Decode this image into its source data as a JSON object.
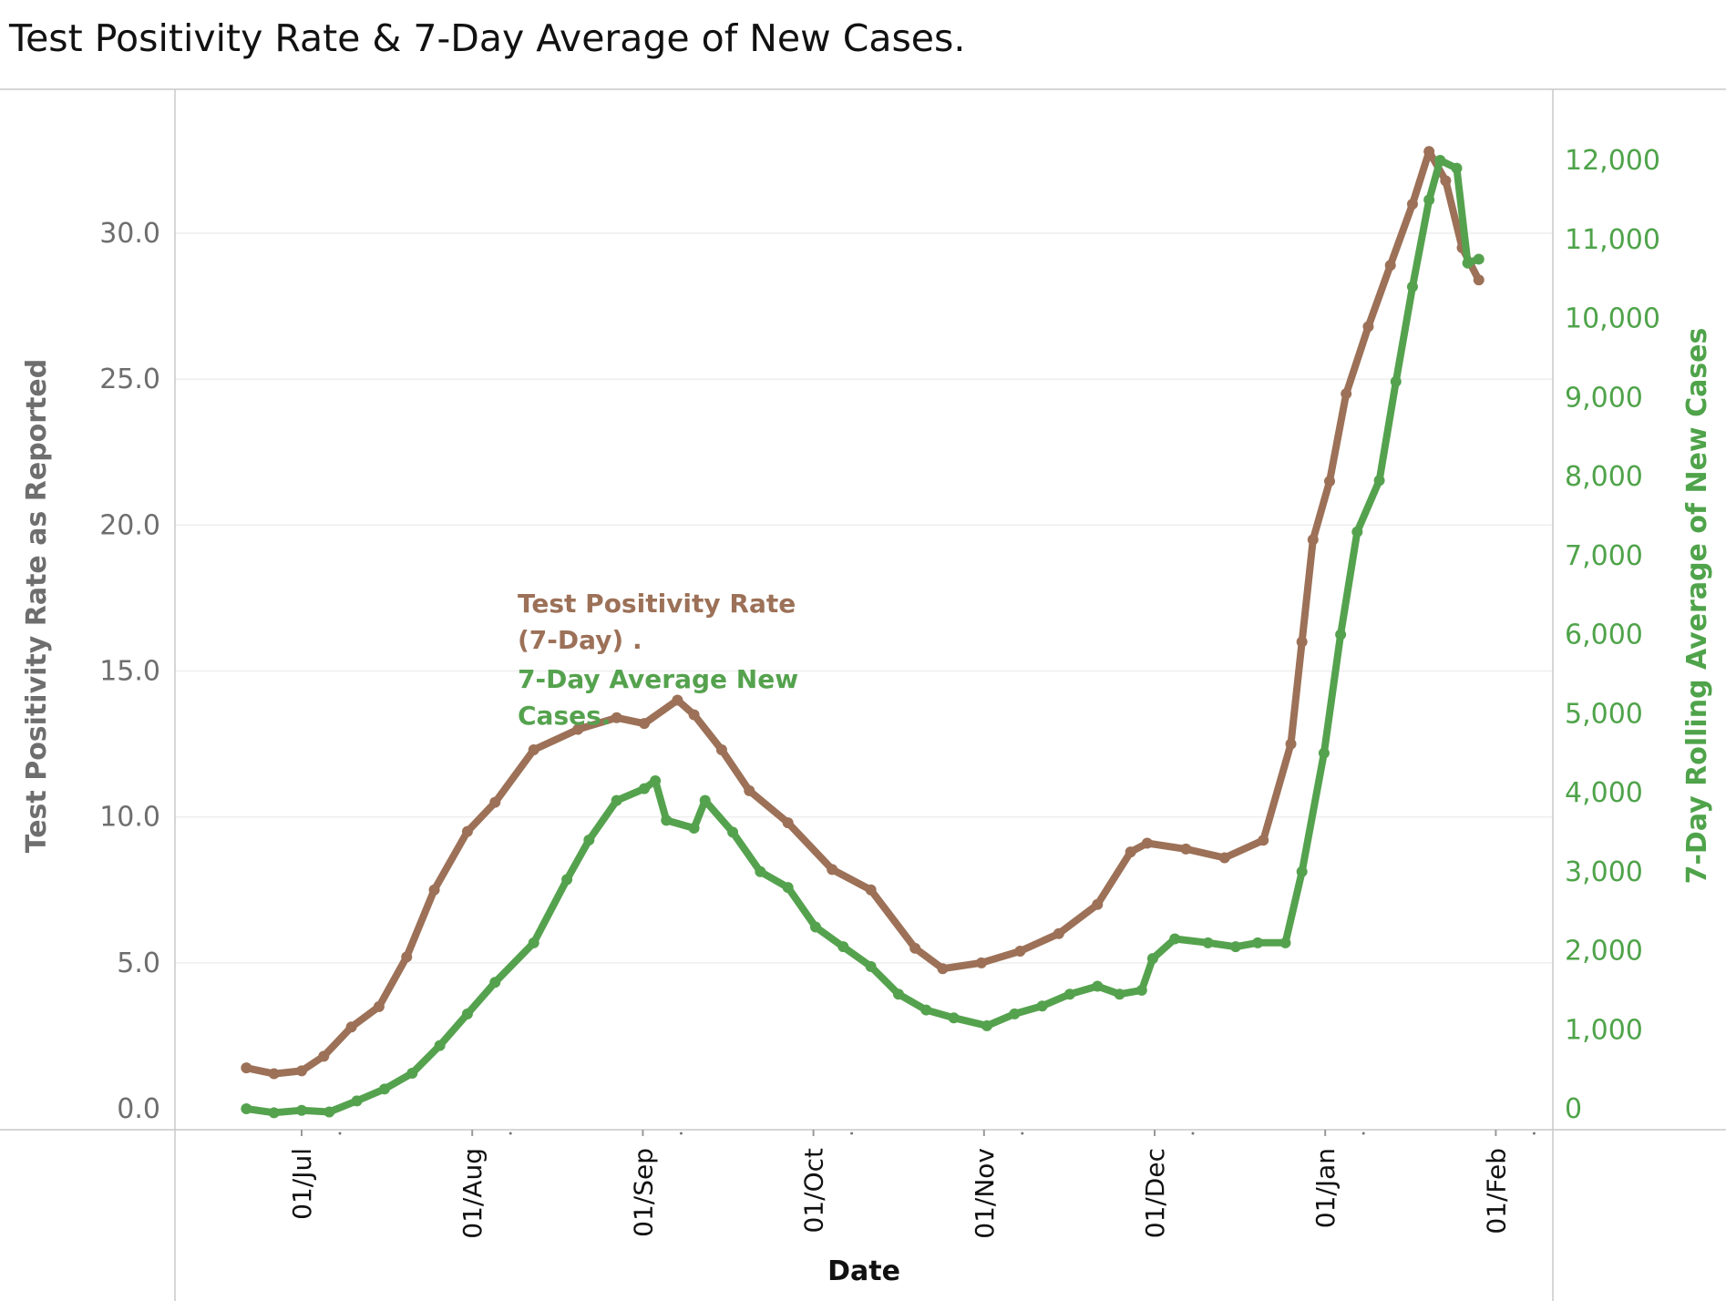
{
  "title": "Test Positivity Rate & 7-Day Average of New Cases.",
  "colors": {
    "positivity": "#9c7158",
    "cases": "#55a24e",
    "left_axis_text": "#6e6e6e",
    "right_axis_text": "#4fa34a",
    "grid": "#eeeeee",
    "axis": "#c8c8c8"
  },
  "legend": {
    "positivity_line1": "Test Positivity Rate",
    "positivity_line2": "(7-Day) .",
    "cases_line1": "7-Day Average New",
    "cases_line2": "Cases."
  },
  "chart_data": {
    "type": "line",
    "title": "Test Positivity Rate & 7-Day Average of New Cases.",
    "xlabel": "Date",
    "ylabel": "Test Positivity Rate as Reported",
    "y2label": "7-Day Rolling Average of New Cases",
    "x_ticks": [
      "01/Jul",
      "01/Aug",
      "01/Sep",
      "01/Oct",
      "01/Nov",
      "01/Dec",
      "01/Jan",
      "01/Feb"
    ],
    "y_ticks": [
      "0.0",
      "5.0",
      "10.0",
      "15.0",
      "20.0",
      "25.0",
      "30.0"
    ],
    "y2_ticks": [
      "0",
      "1,000",
      "2,000",
      "3,000",
      "4,000",
      "5,000",
      "6,000",
      "7,000",
      "8,000",
      "9,000",
      "10,000",
      "11,000",
      "12,000"
    ],
    "ylim": [
      0,
      34
    ],
    "y2lim": [
      0,
      12600
    ],
    "grid": true,
    "series": [
      {
        "name": "Test Positivity Rate (7-Day)",
        "axis": "left",
        "points": [
          [
            "2020-06-21",
            1.4
          ],
          [
            "2020-06-26",
            1.2
          ],
          [
            "2020-07-01",
            1.3
          ],
          [
            "2020-07-05",
            1.8
          ],
          [
            "2020-07-10",
            2.8
          ],
          [
            "2020-07-15",
            3.5
          ],
          [
            "2020-07-20",
            5.2
          ],
          [
            "2020-07-25",
            7.5
          ],
          [
            "2020-07-31",
            9.5
          ],
          [
            "2020-08-05",
            10.5
          ],
          [
            "2020-08-12",
            12.3
          ],
          [
            "2020-08-20",
            13.0
          ],
          [
            "2020-08-27",
            13.4
          ],
          [
            "2020-09-01",
            13.2
          ],
          [
            "2020-09-07",
            14.0
          ],
          [
            "2020-09-10",
            13.5
          ],
          [
            "2020-09-15",
            12.3
          ],
          [
            "2020-09-20",
            10.9
          ],
          [
            "2020-09-27",
            9.8
          ],
          [
            "2020-10-05",
            8.2
          ],
          [
            "2020-10-12",
            7.5
          ],
          [
            "2020-10-20",
            5.5
          ],
          [
            "2020-10-25",
            4.8
          ],
          [
            "2020-11-01",
            5.0
          ],
          [
            "2020-11-08",
            5.4
          ],
          [
            "2020-11-15",
            6.0
          ],
          [
            "2020-11-22",
            7.0
          ],
          [
            "2020-11-28",
            8.8
          ],
          [
            "2020-12-01",
            9.1
          ],
          [
            "2020-12-08",
            8.9
          ],
          [
            "2020-12-15",
            8.6
          ],
          [
            "2020-12-22",
            9.2
          ],
          [
            "2020-12-27",
            12.5
          ],
          [
            "2020-12-29",
            16.0
          ],
          [
            "2020-12-31",
            19.5
          ],
          [
            "2021-01-03",
            21.5
          ],
          [
            "2021-01-06",
            24.5
          ],
          [
            "2021-01-10",
            26.8
          ],
          [
            "2021-01-14",
            28.9
          ],
          [
            "2021-01-18",
            31.0
          ],
          [
            "2021-01-21",
            32.8
          ],
          [
            "2021-01-24",
            31.8
          ],
          [
            "2021-01-27",
            29.5
          ],
          [
            "2021-01-30",
            28.4
          ]
        ]
      },
      {
        "name": "7-Day Average New Cases",
        "axis": "right",
        "points": [
          [
            "2020-06-21",
            0
          ],
          [
            "2020-06-26",
            -50
          ],
          [
            "2020-07-01",
            -20
          ],
          [
            "2020-07-06",
            -40
          ],
          [
            "2020-07-11",
            100
          ],
          [
            "2020-07-16",
            250
          ],
          [
            "2020-07-21",
            450
          ],
          [
            "2020-07-26",
            800
          ],
          [
            "2020-07-31",
            1200
          ],
          [
            "2020-08-05",
            1600
          ],
          [
            "2020-08-12",
            2100
          ],
          [
            "2020-08-18",
            2900
          ],
          [
            "2020-08-22",
            3400
          ],
          [
            "2020-08-27",
            3900
          ],
          [
            "2020-09-01",
            4050
          ],
          [
            "2020-09-03",
            4150
          ],
          [
            "2020-09-05",
            3650
          ],
          [
            "2020-09-10",
            3550
          ],
          [
            "2020-09-12",
            3900
          ],
          [
            "2020-09-17",
            3500
          ],
          [
            "2020-09-22",
            3000
          ],
          [
            "2020-09-27",
            2800
          ],
          [
            "2020-10-02",
            2300
          ],
          [
            "2020-10-07",
            2050
          ],
          [
            "2020-10-12",
            1800
          ],
          [
            "2020-10-17",
            1450
          ],
          [
            "2020-10-22",
            1250
          ],
          [
            "2020-10-27",
            1150
          ],
          [
            "2020-11-02",
            1050
          ],
          [
            "2020-11-07",
            1200
          ],
          [
            "2020-11-12",
            1300
          ],
          [
            "2020-11-17",
            1450
          ],
          [
            "2020-11-22",
            1550
          ],
          [
            "2020-11-26",
            1450
          ],
          [
            "2020-11-30",
            1500
          ],
          [
            "2020-12-02",
            1900
          ],
          [
            "2020-12-06",
            2150
          ],
          [
            "2020-12-12",
            2100
          ],
          [
            "2020-12-17",
            2050
          ],
          [
            "2020-12-21",
            2100
          ],
          [
            "2020-12-26",
            2100
          ],
          [
            "2020-12-29",
            3000
          ],
          [
            "2021-01-02",
            4500
          ],
          [
            "2021-01-05",
            6000
          ],
          [
            "2021-01-08",
            7300
          ],
          [
            "2021-01-12",
            7950
          ],
          [
            "2021-01-15",
            9200
          ],
          [
            "2021-01-18",
            10400
          ],
          [
            "2021-01-21",
            11500
          ],
          [
            "2021-01-23",
            12000
          ],
          [
            "2021-01-26",
            11900
          ],
          [
            "2021-01-28",
            10700
          ],
          [
            "2021-01-30",
            10750
          ]
        ]
      }
    ]
  }
}
